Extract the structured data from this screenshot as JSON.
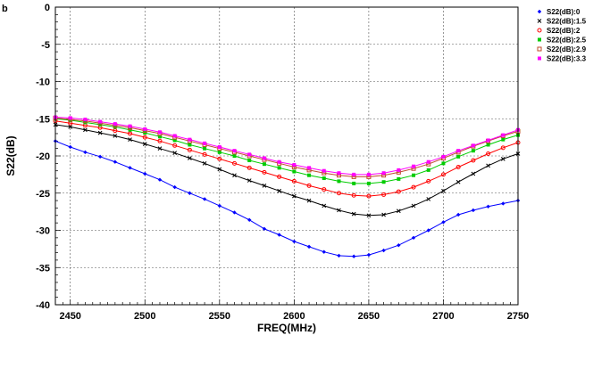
{
  "panel_label": "b",
  "chart_data": {
    "type": "line",
    "xlabel": "FREQ(MHz)",
    "ylabel": "S22(dB)",
    "xlim": [
      2440,
      2750
    ],
    "ylim": [
      -40,
      0
    ],
    "x_ticks": [
      2450,
      2500,
      2550,
      2600,
      2650,
      2700,
      2750
    ],
    "y_ticks": [
      0,
      -5,
      -10,
      -15,
      -20,
      -25,
      -30,
      -35,
      -40
    ],
    "x_tick_labels": [
      "2450",
      "2500",
      "2550",
      "2600",
      "2650",
      "2700",
      "2750"
    ],
    "y_tick_labels": [
      "0",
      "-5",
      "-10",
      "-15",
      "-20",
      "-25",
      "-30",
      "-35",
      "-40"
    ],
    "grid": true,
    "legend_position": "top-right, outside plot",
    "x": [
      2440,
      2450,
      2460,
      2470,
      2480,
      2490,
      2500,
      2510,
      2520,
      2530,
      2540,
      2550,
      2560,
      2570,
      2580,
      2590,
      2600,
      2610,
      2620,
      2630,
      2640,
      2650,
      2660,
      2670,
      2680,
      2690,
      2700,
      2710,
      2720,
      2730,
      2740,
      2750
    ],
    "series": [
      {
        "name": "S22(dB):0",
        "color": "#0000ff",
        "marker": "diamond",
        "values": [
          -18,
          -18.8,
          -19.5,
          -20.1,
          -20.8,
          -21.6,
          -22.4,
          -23.2,
          -24.2,
          -25.0,
          -25.8,
          -26.7,
          -27.6,
          -28.6,
          -29.8,
          -30.6,
          -31.5,
          -32.2,
          -32.9,
          -33.4,
          -33.5,
          -33.3,
          -32.7,
          -32.0,
          -31.0,
          -30.0,
          -28.9,
          -27.9,
          -27.3,
          -26.8,
          -26.4,
          -26.0
        ]
      },
      {
        "name": "S22(dB):1.5",
        "color": "#000000",
        "marker": "x",
        "values": [
          -15.8,
          -16.1,
          -16.5,
          -16.9,
          -17.3,
          -17.8,
          -18.4,
          -19.0,
          -19.6,
          -20.3,
          -21.0,
          -21.8,
          -22.6,
          -23.3,
          -24.0,
          -24.7,
          -25.4,
          -26.0,
          -26.7,
          -27.3,
          -27.8,
          -28.0,
          -27.9,
          -27.4,
          -26.7,
          -25.8,
          -24.7,
          -23.5,
          -22.4,
          -21.3,
          -20.4,
          -19.7
        ]
      },
      {
        "name": "S22(dB):2",
        "color": "#ff0000",
        "marker": "circle",
        "values": [
          -15.3,
          -15.6,
          -15.9,
          -16.2,
          -16.6,
          -17.0,
          -17.5,
          -18.0,
          -18.6,
          -19.2,
          -19.8,
          -20.4,
          -21.0,
          -21.6,
          -22.2,
          -22.8,
          -23.4,
          -24.0,
          -24.5,
          -25.0,
          -25.3,
          -25.4,
          -25.2,
          -24.8,
          -24.2,
          -23.4,
          -22.5,
          -21.5,
          -20.6,
          -19.7,
          -18.9,
          -18.2
        ]
      },
      {
        "name": "S22(dB):2.5",
        "color": "#00cc00",
        "marker": "square-filled",
        "values": [
          -15.0,
          -15.2,
          -15.5,
          -15.8,
          -16.1,
          -16.5,
          -16.9,
          -17.4,
          -17.9,
          -18.5,
          -19.0,
          -19.5,
          -20.0,
          -20.6,
          -21.1,
          -21.6,
          -22.1,
          -22.6,
          -23.0,
          -23.4,
          -23.7,
          -23.7,
          -23.5,
          -23.1,
          -22.6,
          -21.9,
          -21.0,
          -20.1,
          -19.3,
          -18.5,
          -17.8,
          -17.2
        ]
      },
      {
        "name": "S22(dB):2.9",
        "color": "#c04a2a",
        "marker": "square-open",
        "values": [
          -14.9,
          -15.1,
          -15.3,
          -15.6,
          -15.9,
          -16.2,
          -16.6,
          -17.0,
          -17.5,
          -18.0,
          -18.5,
          -19.0,
          -19.5,
          -20.0,
          -20.5,
          -21.0,
          -21.5,
          -21.9,
          -22.3,
          -22.6,
          -22.8,
          -22.8,
          -22.6,
          -22.2,
          -21.7,
          -21.1,
          -20.3,
          -19.5,
          -18.7,
          -18.0,
          -17.3,
          -16.7
        ]
      },
      {
        "name": "S22(dB):3.3",
        "color": "#ff00ff",
        "marker": "square-filled",
        "values": [
          -14.8,
          -14.9,
          -15.1,
          -15.4,
          -15.7,
          -16.0,
          -16.4,
          -16.8,
          -17.3,
          -17.8,
          -18.3,
          -18.8,
          -19.3,
          -19.8,
          -20.3,
          -20.8,
          -21.2,
          -21.6,
          -22.0,
          -22.3,
          -22.5,
          -22.5,
          -22.3,
          -21.9,
          -21.4,
          -20.8,
          -20.1,
          -19.3,
          -18.6,
          -17.9,
          -17.2,
          -16.5
        ]
      }
    ]
  }
}
